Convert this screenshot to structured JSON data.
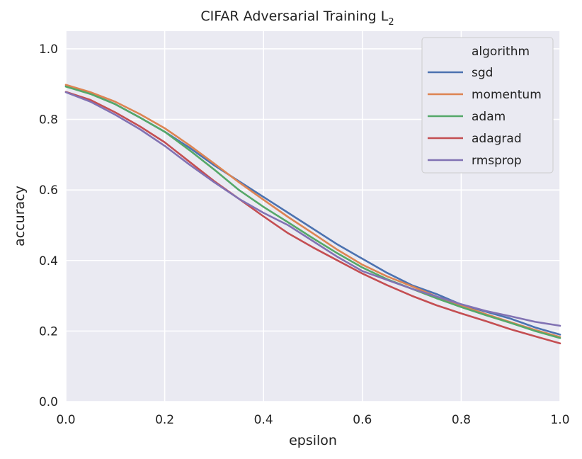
{
  "chart_data": {
    "type": "line",
    "title": "CIFAR Adversarial Training L",
    "title_subscript": "2",
    "xlabel": "epsilon",
    "ylabel": "accuracy",
    "xlim": [
      0.0,
      1.0
    ],
    "ylim": [
      0.0,
      1.05
    ],
    "x_ticks": [
      "0.0",
      "0.2",
      "0.4",
      "0.6",
      "0.8",
      "1.0"
    ],
    "y_ticks": [
      "0.0",
      "0.2",
      "0.4",
      "0.6",
      "0.8",
      "1.0"
    ],
    "grid": true,
    "legend_title": "algorithm",
    "legend_position": "top-right",
    "x": [
      0.0,
      0.05,
      0.1,
      0.15,
      0.2,
      0.25,
      0.3,
      0.35,
      0.4,
      0.45,
      0.5,
      0.55,
      0.6,
      0.65,
      0.7,
      0.75,
      0.8,
      0.85,
      0.9,
      0.95,
      1.0
    ],
    "series": [
      {
        "name": "sgd",
        "color": "#4c72b0",
        "values": [
          0.895,
          0.873,
          0.843,
          0.805,
          0.765,
          0.72,
          0.67,
          0.625,
          0.58,
          0.535,
          0.49,
          0.445,
          0.405,
          0.365,
          0.33,
          0.305,
          0.275,
          0.255,
          0.235,
          0.21,
          0.19
        ]
      },
      {
        "name": "momentum",
        "color": "#dd8452",
        "values": [
          0.898,
          0.877,
          0.85,
          0.815,
          0.775,
          0.727,
          0.675,
          0.622,
          0.572,
          0.523,
          0.477,
          0.43,
          0.388,
          0.355,
          0.327,
          0.298,
          0.272,
          0.248,
          0.225,
          0.203,
          0.183
        ]
      },
      {
        "name": "adam",
        "color": "#55a868",
        "values": [
          0.893,
          0.872,
          0.843,
          0.805,
          0.765,
          0.713,
          0.658,
          0.6,
          0.552,
          0.508,
          0.463,
          0.42,
          0.38,
          0.347,
          0.32,
          0.293,
          0.268,
          0.245,
          0.223,
          0.2,
          0.18
        ]
      },
      {
        "name": "adagrad",
        "color": "#c44e52",
        "values": [
          0.878,
          0.855,
          0.82,
          0.78,
          0.735,
          0.68,
          0.625,
          0.575,
          0.525,
          0.477,
          0.437,
          0.4,
          0.363,
          0.33,
          0.3,
          0.273,
          0.25,
          0.228,
          0.205,
          0.185,
          0.165
        ]
      },
      {
        "name": "rmsprop",
        "color": "#8172b3",
        "values": [
          0.877,
          0.85,
          0.813,
          0.772,
          0.725,
          0.672,
          0.622,
          0.575,
          0.535,
          0.5,
          0.455,
          0.41,
          0.37,
          0.345,
          0.32,
          0.298,
          0.276,
          0.257,
          0.242,
          0.226,
          0.215
        ]
      }
    ]
  }
}
